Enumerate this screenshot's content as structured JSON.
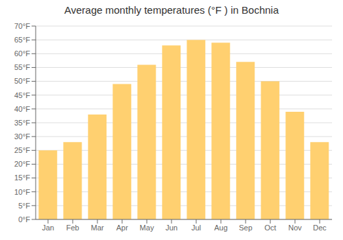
{
  "chart_data": {
    "type": "bar",
    "title": "Average monthly temperatures (°F ) in Bochnia",
    "categories": [
      "Jan",
      "Feb",
      "Mar",
      "Apr",
      "May",
      "Jun",
      "Jul",
      "Aug",
      "Sep",
      "Oct",
      "Nov",
      "Dec"
    ],
    "values": [
      25,
      28,
      38,
      49,
      56,
      63,
      65,
      64,
      57,
      50,
      39,
      28
    ],
    "color": "#FFD070",
    "ylim": [
      0,
      70
    ],
    "yticks": [
      {
        "value": 0,
        "label": "0°F"
      },
      {
        "value": 5,
        "label": "5°F"
      },
      {
        "value": 10,
        "label": "10°F"
      },
      {
        "value": 15,
        "label": "15°F"
      },
      {
        "value": 20,
        "label": "20°F"
      },
      {
        "value": 25,
        "label": "25°F"
      },
      {
        "value": 30,
        "label": "30°F"
      },
      {
        "value": 35,
        "label": "35°F"
      },
      {
        "value": 40,
        "label": "40°F"
      },
      {
        "value": 45,
        "label": "45°F"
      },
      {
        "value": 50,
        "label": "50°F"
      },
      {
        "value": 55,
        "label": "55°F"
      },
      {
        "value": 60,
        "label": "60°F"
      },
      {
        "value": 65,
        "label": "65°F"
      },
      {
        "value": 70,
        "label": "70°F"
      }
    ],
    "grid": true
  }
}
